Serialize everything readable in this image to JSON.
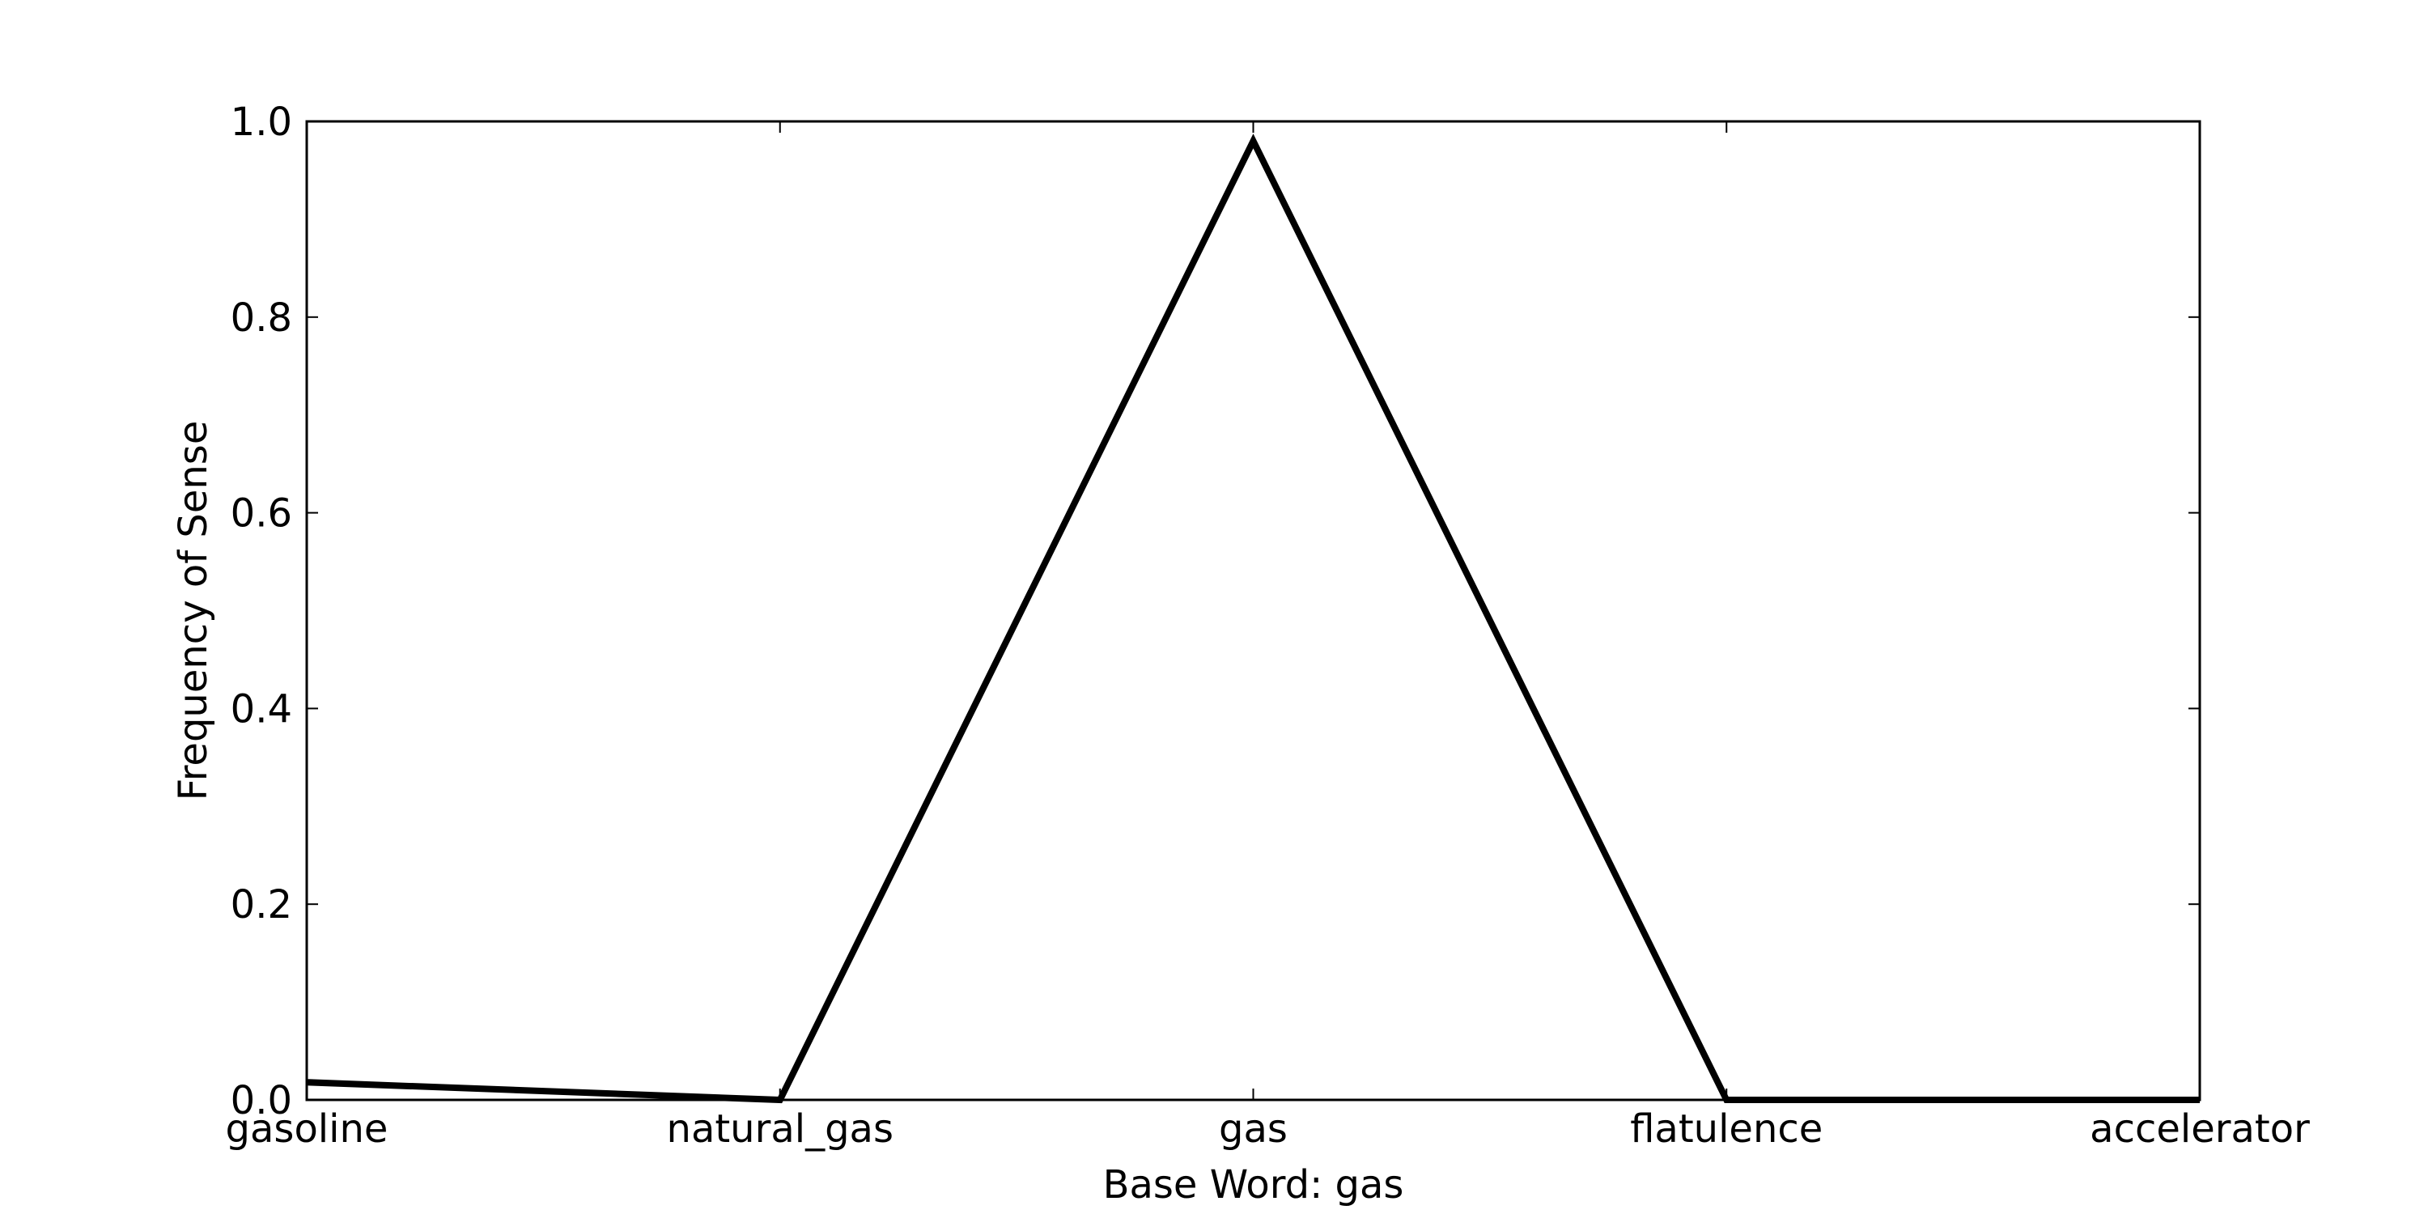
{
  "chart_data": {
    "type": "line",
    "categories": [
      "gasoline",
      "natural_gas",
      "gas",
      "flatulence",
      "accelerator"
    ],
    "series": [
      {
        "values": [
          0.018,
          0.0,
          0.98,
          0.0,
          0.0
        ],
        "color": "#000000"
      }
    ],
    "xlabel": "Base Word: gas",
    "ylabel": "Frequency of Sense",
    "ylim": [
      0.0,
      1.0
    ],
    "yticks": [
      "0.0",
      "0.2",
      "0.4",
      "0.6",
      "0.8",
      "1.0"
    ],
    "grid": false,
    "legend": "none"
  }
}
